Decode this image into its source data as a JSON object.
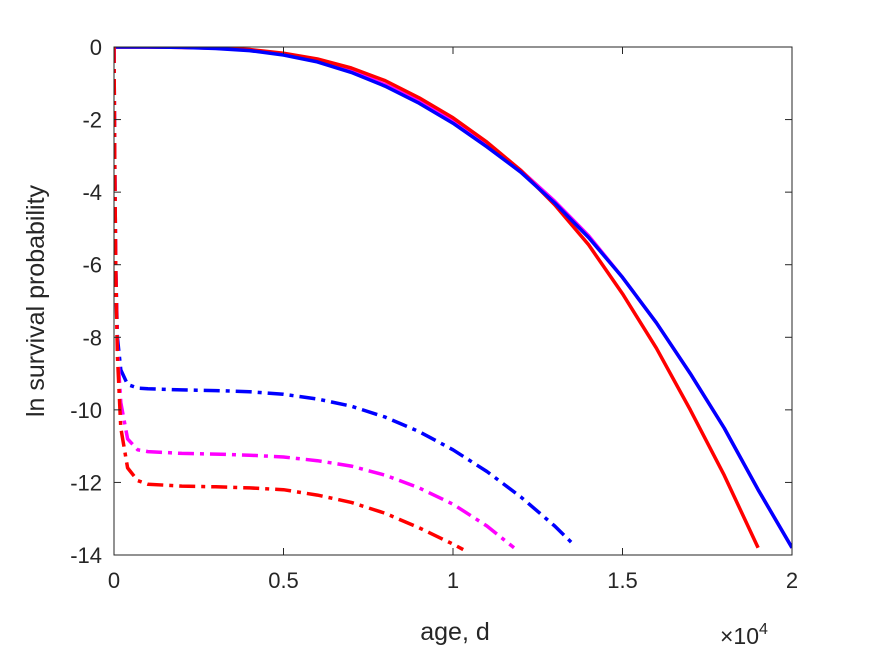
{
  "chart_data": {
    "type": "line",
    "title": "",
    "xlabel": "age, d",
    "ylabel": "ln survival probability",
    "x_exponent_label": "×10",
    "x_exponent_power": "4",
    "xlim": [
      0,
      20000
    ],
    "ylim": [
      -14,
      0
    ],
    "xticks": [
      0,
      5000,
      10000,
      15000,
      20000
    ],
    "xtick_labels": [
      "0",
      "0.5",
      "1",
      "1.5",
      "2"
    ],
    "yticks": [
      0,
      -2,
      -4,
      -6,
      -8,
      -10,
      -12,
      -14
    ],
    "ytick_labels": [
      "0",
      "-2",
      "-4",
      "-6",
      "-8",
      "-10",
      "-12",
      "-14"
    ],
    "grid": false,
    "legend": null,
    "series": [
      {
        "color": "#ff00ff",
        "style": "solid",
        "x": [
          0,
          1000,
          2000,
          3000,
          4000,
          5000,
          6000,
          7000,
          8000,
          9000,
          10000,
          11000,
          12000,
          13000,
          14000,
          15000,
          16000,
          17000,
          18000,
          19000,
          20000
        ],
        "y": [
          0,
          0,
          -0.01,
          -0.03,
          -0.09,
          -0.2,
          -0.39,
          -0.66,
          -1.04,
          -1.5,
          -2.05,
          -2.7,
          -3.4,
          -4.25,
          -5.2,
          -6.35,
          -7.6,
          -9.0,
          -10.5,
          -12.2,
          -13.8
        ]
      },
      {
        "color": "#ff0000",
        "style": "solid",
        "x": [
          0,
          1000,
          2000,
          3000,
          4000,
          5000,
          6000,
          7000,
          8000,
          9000,
          10000,
          11000,
          12000,
          13000,
          14000,
          15000,
          16000,
          17000,
          18000,
          19000
        ],
        "y": [
          0,
          0,
          -0.01,
          -0.03,
          -0.07,
          -0.17,
          -0.33,
          -0.58,
          -0.93,
          -1.4,
          -1.95,
          -2.62,
          -3.4,
          -4.35,
          -5.45,
          -6.8,
          -8.3,
          -10.0,
          -11.8,
          -13.8
        ]
      },
      {
        "color": "#0000ff",
        "style": "solid",
        "x": [
          0,
          1000,
          2000,
          3000,
          4000,
          5000,
          6000,
          7000,
          8000,
          9000,
          10000,
          11000,
          12000,
          13000,
          14000,
          15000,
          16000,
          17000,
          18000,
          19000,
          20000
        ],
        "y": [
          0,
          0,
          -0.01,
          -0.04,
          -0.1,
          -0.22,
          -0.41,
          -0.7,
          -1.08,
          -1.55,
          -2.1,
          -2.75,
          -3.45,
          -4.3,
          -5.25,
          -6.35,
          -7.6,
          -9.0,
          -10.5,
          -12.2,
          -13.8
        ]
      },
      {
        "color": "#0000ff",
        "style": "dashdot",
        "x": [
          0,
          20,
          50,
          100,
          200,
          400,
          700,
          1000,
          2000,
          3000,
          4000,
          5000,
          6000,
          7000,
          8000,
          9000,
          10000,
          11000,
          12000,
          13000,
          13600
        ],
        "y": [
          0,
          -3,
          -6,
          -8,
          -8.9,
          -9.3,
          -9.4,
          -9.42,
          -9.45,
          -9.47,
          -9.5,
          -9.57,
          -9.7,
          -9.9,
          -10.2,
          -10.6,
          -11.1,
          -11.7,
          -12.4,
          -13.2,
          -13.75
        ]
      },
      {
        "color": "#ff00ff",
        "style": "dashdot",
        "x": [
          0,
          20,
          50,
          100,
          200,
          400,
          700,
          1000,
          2000,
          3000,
          4000,
          5000,
          6000,
          7000,
          8000,
          9000,
          10000,
          11000,
          11800
        ],
        "y": [
          0,
          -3,
          -6,
          -8.3,
          -9.8,
          -10.8,
          -11.1,
          -11.15,
          -11.2,
          -11.22,
          -11.25,
          -11.3,
          -11.4,
          -11.55,
          -11.8,
          -12.15,
          -12.6,
          -13.2,
          -13.8
        ]
      },
      {
        "color": "#ff0000",
        "style": "dashdot",
        "x": [
          0,
          20,
          50,
          100,
          200,
          400,
          700,
          1000,
          2000,
          3000,
          4000,
          5000,
          6000,
          7000,
          8000,
          9000,
          10000,
          10300
        ],
        "y": [
          0,
          -3,
          -6,
          -8.5,
          -10.5,
          -11.6,
          -11.95,
          -12.05,
          -12.1,
          -12.12,
          -12.15,
          -12.2,
          -12.35,
          -12.55,
          -12.85,
          -13.25,
          -13.7,
          -13.85
        ]
      }
    ]
  }
}
